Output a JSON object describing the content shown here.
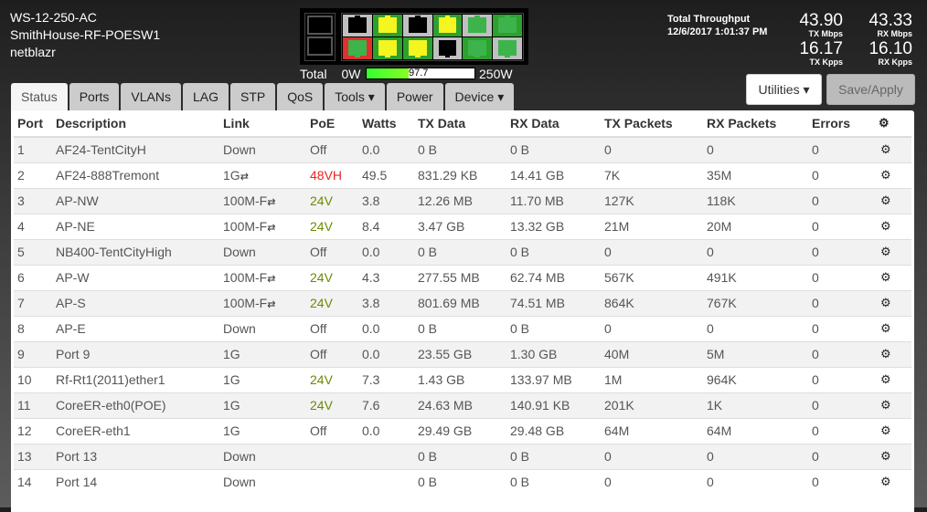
{
  "device": {
    "model": "WS-12-250-AC",
    "name": "SmithHouse-RF-POESW1",
    "user": "netblazr"
  },
  "switch_ports": {
    "top": [
      {
        "bg": "#c0c0c0",
        "fg": "#000000"
      },
      {
        "bg": "#2ea02e",
        "fg": "#f5f520"
      },
      {
        "bg": "#c0c0c0",
        "fg": "#000000"
      },
      {
        "bg": "#2ea02e",
        "fg": "#f5f520"
      },
      {
        "bg": "#c0c0c0",
        "fg": "#3cb44b"
      },
      {
        "bg": "#2ea02e",
        "fg": "#3cb44b"
      }
    ],
    "bottom": [
      {
        "bg": "#e03030",
        "fg": "#3cb44b"
      },
      {
        "bg": "#2ea02e",
        "fg": "#f5f520"
      },
      {
        "bg": "#2ea02e",
        "fg": "#f5f520"
      },
      {
        "bg": "#c0c0c0",
        "fg": "#000000"
      },
      {
        "bg": "#2ea02e",
        "fg": "#3cb44b"
      },
      {
        "bg": "#c0c0c0",
        "fg": "#3cb44b"
      }
    ]
  },
  "power": {
    "label": "Total",
    "min": "0W",
    "max": "250W",
    "value": "97.7",
    "max_value": 250
  },
  "throughput": {
    "title": "Total Throughput",
    "timestamp": "12/6/2017 1:01:37 PM",
    "tx_mbps": "43.90",
    "tx_mbps_label": "TX Mbps",
    "rx_mbps": "43.33",
    "rx_mbps_label": "RX Mbps",
    "tx_kpps": "16.17",
    "tx_kpps_label": "TX Kpps",
    "rx_kpps": "16.10",
    "rx_kpps_label": "RX Kpps"
  },
  "buttons": {
    "utilities": "Utilities ▾",
    "save": "Save/Apply"
  },
  "tabs": [
    "Status",
    "Ports",
    "VLANs",
    "LAG",
    "STP",
    "QoS",
    "Tools ▾",
    "Power",
    "Device ▾"
  ],
  "table": {
    "headers": [
      "Port",
      "Description",
      "Link",
      "PoE",
      "Watts",
      "TX Data",
      "RX Data",
      "TX Packets",
      "RX Packets",
      "Errors"
    ],
    "rows": [
      [
        "1",
        "AF24-TentCityH",
        "Down",
        "Off",
        "0.0",
        "0 B",
        "0 B",
        "0",
        "0",
        "0"
      ],
      [
        "2",
        "AF24-888Tremont",
        "1G",
        "48VH",
        "49.5",
        "831.29 KB",
        "14.41 GB",
        "7K",
        "35M",
        "0"
      ],
      [
        "3",
        "AP-NW",
        "100M-F",
        "24V",
        "3.8",
        "12.26 MB",
        "11.70 MB",
        "127K",
        "118K",
        "0"
      ],
      [
        "4",
        "AP-NE",
        "100M-F",
        "24V",
        "8.4",
        "3.47 GB",
        "13.32 GB",
        "21M",
        "20M",
        "0"
      ],
      [
        "5",
        "NB400-TentCityHigh",
        "Down",
        "Off",
        "0.0",
        "0 B",
        "0 B",
        "0",
        "0",
        "0"
      ],
      [
        "6",
        "AP-W",
        "100M-F",
        "24V",
        "4.3",
        "277.55 MB",
        "62.74 MB",
        "567K",
        "491K",
        "0"
      ],
      [
        "7",
        "AP-S",
        "100M-F",
        "24V",
        "3.8",
        "801.69 MB",
        "74.51 MB",
        "864K",
        "767K",
        "0"
      ],
      [
        "8",
        "AP-E",
        "Down",
        "Off",
        "0.0",
        "0 B",
        "0 B",
        "0",
        "0",
        "0"
      ],
      [
        "9",
        "Port 9",
        "1G",
        "Off",
        "0.0",
        "23.55 GB",
        "1.30 GB",
        "40M",
        "5M",
        "0"
      ],
      [
        "10",
        "Rf-Rt1(2011)ether1",
        "1G",
        "24V",
        "7.3",
        "1.43 GB",
        "133.97 MB",
        "1M",
        "964K",
        "0"
      ],
      [
        "11",
        "CoreER-eth0(POE)",
        "1G",
        "24V",
        "7.6",
        "24.63 MB",
        "140.91 KB",
        "201K",
        "1K",
        "0"
      ],
      [
        "12",
        "CoreER-eth1",
        "1G",
        "Off",
        "0.0",
        "29.49 GB",
        "29.48 GB",
        "64M",
        "64M",
        "0"
      ],
      [
        "13",
        "Port 13",
        "Down",
        "",
        "",
        "0 B",
        "0 B",
        "0",
        "0",
        "0"
      ],
      [
        "14",
        "Port 14",
        "Down",
        "",
        "",
        "0 B",
        "0 B",
        "0",
        "0",
        "0"
      ]
    ],
    "link_arrows": [
      false,
      true,
      true,
      true,
      false,
      true,
      true,
      false,
      false,
      false,
      false,
      false,
      false,
      false
    ]
  }
}
